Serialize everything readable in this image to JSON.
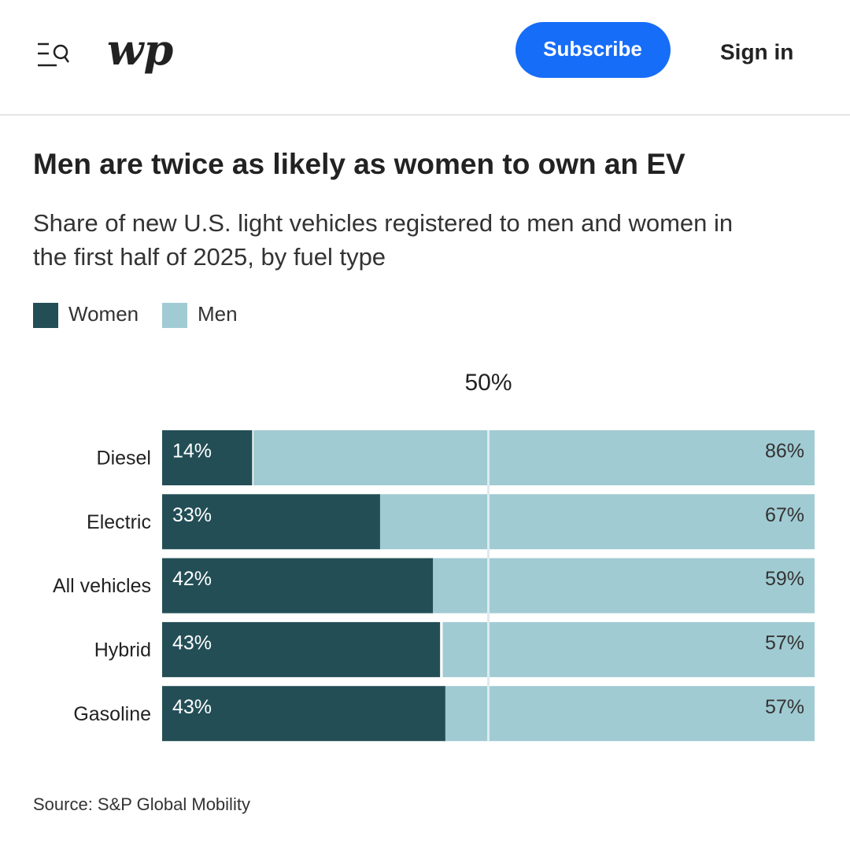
{
  "header": {
    "logo": "wp",
    "subscribe": "Subscribe",
    "sign_in": "Sign in"
  },
  "chart_data": {
    "type": "stacked-bar-horizontal",
    "title": "Men are twice as likely as women to own an EV",
    "subtitle": [
      "Share of new U.S. light vehicles registered to men and women in",
      "the first half of 2025, by fuel type"
    ],
    "categories": [
      "Diesel",
      "Electric",
      "All vehicles",
      "Hybrid",
      "Gasoline"
    ],
    "series": [
      {
        "name": "Women",
        "color": "#234e56",
        "values": [
          13.8,
          33.4,
          41.5,
          42.6,
          43.4
        ],
        "value_labels": [
          "14%",
          "33%",
          "42%",
          "43%",
          "43%"
        ]
      },
      {
        "name": "Men",
        "color": "#a1cbd3",
        "values": [
          86,
          67,
          59,
          57,
          57
        ],
        "value_labels": [
          "86%",
          "67%",
          "59%",
          "57%",
          "57%"
        ]
      }
    ],
    "xlim": [
      0,
      100
    ],
    "reference_line": {
      "value": 50,
      "label": "50%"
    },
    "source": "Source: S&P Global Mobility"
  }
}
